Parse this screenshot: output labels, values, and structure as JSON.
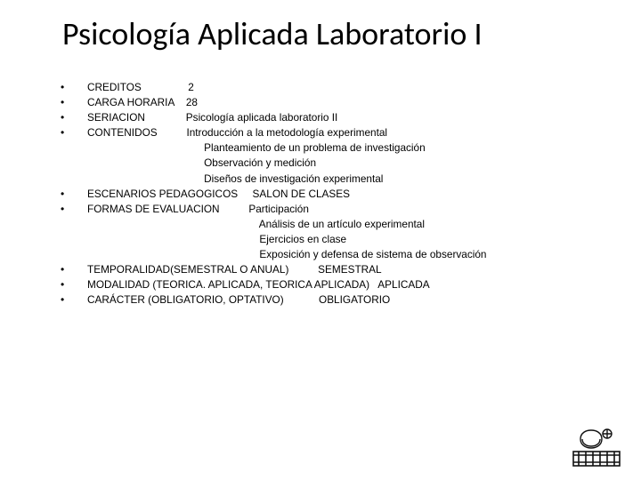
{
  "title": "Psicología Aplicada Laboratorio I",
  "items": [
    {
      "label": "CREDITOS",
      "gap": "                ",
      "values": [
        "2"
      ]
    },
    {
      "label": "CARGA HORARIA",
      "gap": "    ",
      "values": [
        "28"
      ]
    },
    {
      "label": "SERIACION",
      "gap": "              ",
      "values": [
        "Psicología aplicada laboratorio II"
      ]
    },
    {
      "label": "CONTENIDOS",
      "gap": "          ",
      "values": [
        "Introducción a la metodología experimental",
        "Planteamiento de un problema de investigación",
        "Observación y medición",
        "Diseños de investigación experimental"
      ],
      "indent_after": "                                        "
    },
    {
      "label": "ESCENARIOS PEDAGOGICOS",
      "gap": "     ",
      "values": [
        "SALON DE CLASES"
      ]
    },
    {
      "label": "FORMAS DE EVALUACION",
      "gap": "          ",
      "values": [
        "Participación",
        "Análisis de un artículo experimental",
        "Ejercicios en clase",
        "Exposición y defensa de sistema de observación"
      ],
      "indent_after": "                                                           "
    },
    {
      "label": "TEMPORALIDAD(SEMESTRAL O ANUAL)",
      "gap": "          ",
      "values": [
        "SEMESTRAL"
      ]
    },
    {
      "label": "MODALIDAD (TEORICA. APLICADA, TEORICA APLICADA)",
      "gap": "   ",
      "values": [
        "APLICADA"
      ]
    },
    {
      "label": "CARÁCTER (OBLIGATORIO, OPTATIVO)",
      "gap": "            ",
      "values": [
        "OBLIGATORIO"
      ]
    }
  ],
  "styling": {
    "background": "#ffffff",
    "text_color": "#000000",
    "title_fontsize_pt": 28,
    "body_fontsize_pt": 9,
    "title_font": "Calibri",
    "body_font": "Arial",
    "bullet_char": "•",
    "logo_stroke": "#111111"
  }
}
